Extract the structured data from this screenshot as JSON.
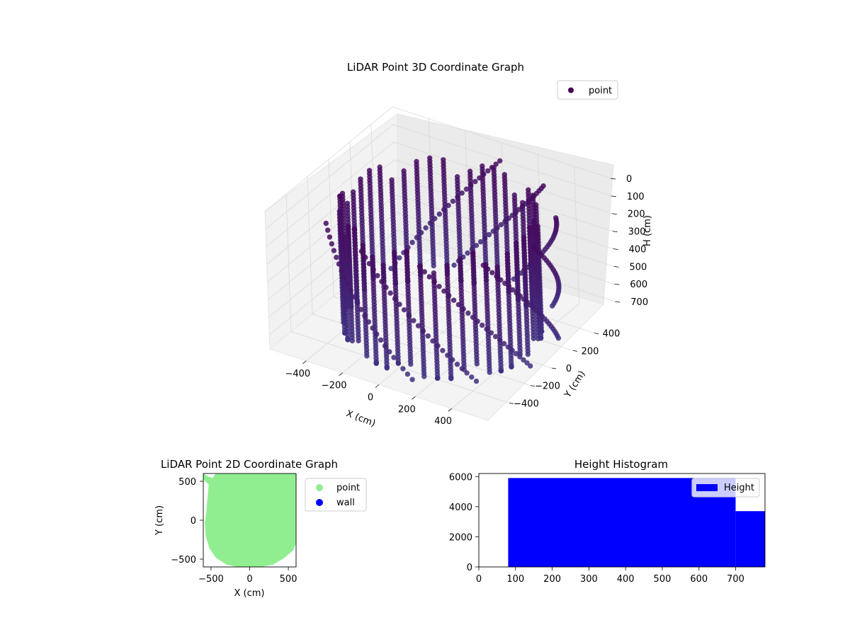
{
  "chart_data": [
    {
      "type": "scatter3d",
      "title": "LiDAR Point 3D Coordinate Graph",
      "xlabel": "X (cm)",
      "ylabel": "Y (cm)",
      "zlabel": "H (cm)",
      "xlim": [
        -600,
        600
      ],
      "ylim": [
        -600,
        600
      ],
      "zlim": [
        780,
        0
      ],
      "x_ticks": [
        -400,
        -200,
        0,
        200,
        400
      ],
      "y_ticks": [
        -400,
        -200,
        0,
        200,
        400
      ],
      "z_ticks": [
        0,
        100,
        200,
        300,
        400,
        500,
        600,
        700
      ],
      "z_axis_inverted": true,
      "grid": true,
      "legend": {
        "placement": "top-right",
        "entries": [
          "point"
        ]
      },
      "series": [
        {
          "name": "point",
          "color": "#440154",
          "structure": "vertical scan columns arranged on a ring of radius ~470 cm plus outer arcs",
          "ring_radius": 470,
          "outer_radius": 560,
          "h_range": [
            80,
            760
          ]
        }
      ]
    },
    {
      "type": "scatter",
      "title": "LiDAR Point 2D Coordinate Graph",
      "xlabel": "X (cm)",
      "ylabel": "Y (cm)",
      "xlim": [
        -600,
        600
      ],
      "ylim": [
        -600,
        600
      ],
      "x_ticks": [
        -500,
        0,
        500
      ],
      "y_ticks": [
        -500,
        0,
        500
      ],
      "legend": {
        "placement": "outside-right",
        "entries": [
          "point",
          "wall"
        ]
      },
      "series": [
        {
          "name": "point",
          "color": "#90ee90",
          "outline": [
            [
              -600,
              600
            ],
            [
              -600,
              520
            ],
            [
              -530,
              460
            ],
            [
              -560,
              120
            ],
            [
              -580,
              -40
            ],
            [
              -570,
              -200
            ],
            [
              -520,
              -360
            ],
            [
              -440,
              -480
            ],
            [
              -300,
              -570
            ],
            [
              -150,
              -600
            ],
            [
              0,
              -610
            ],
            [
              150,
              -600
            ],
            [
              300,
              -570
            ],
            [
              440,
              -490
            ],
            [
              560,
              -390
            ],
            [
              600,
              -300
            ],
            [
              600,
              600
            ],
            [
              -440,
              600
            ],
            [
              -480,
              540
            ],
            [
              -530,
              560
            ]
          ]
        },
        {
          "name": "wall",
          "color": "#0000ff",
          "points": []
        }
      ]
    },
    {
      "type": "histogram",
      "title": "Height Histogram",
      "xlim": [
        0,
        780
      ],
      "ylim": [
        0,
        6200
      ],
      "x_ticks": [
        0,
        100,
        200,
        300,
        400,
        500,
        600,
        700
      ],
      "y_ticks": [
        0,
        2000,
        4000,
        6000
      ],
      "legend": {
        "placement": "top-right",
        "entries": [
          "Height"
        ]
      },
      "series": [
        {
          "name": "Height",
          "color": "#0000ff",
          "bins": [
            {
              "start": 80,
              "end": 700,
              "count": 5900
            },
            {
              "start": 700,
              "end": 780,
              "count": 3700
            }
          ]
        }
      ]
    }
  ]
}
